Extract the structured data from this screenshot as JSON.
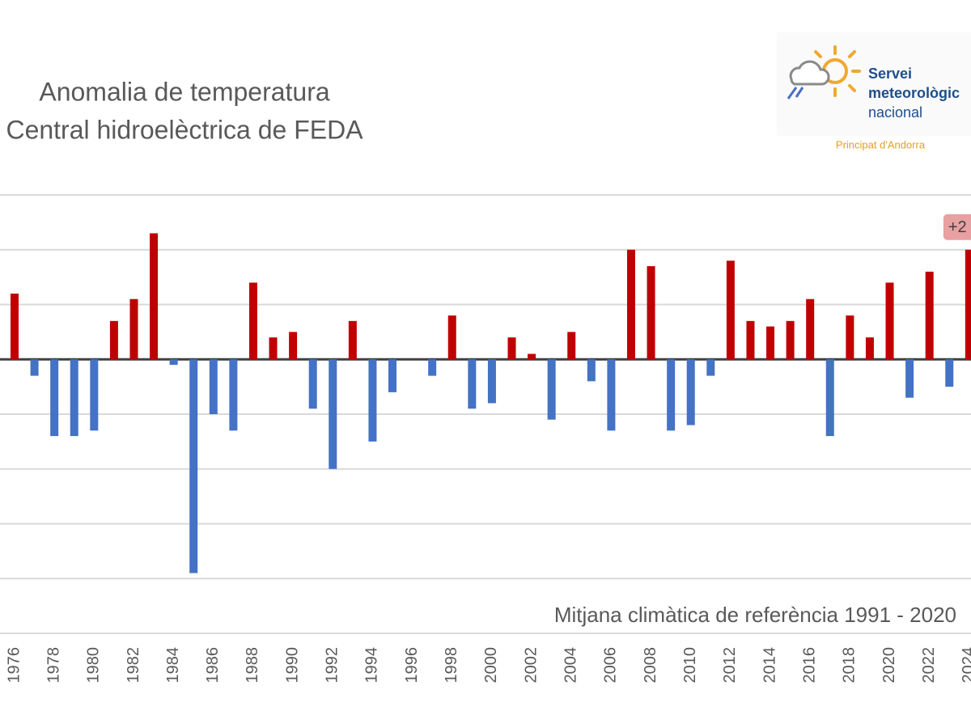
{
  "chart_data": {
    "type": "bar",
    "title_lines": [
      "Anomalia de temperatura",
      "Central hidroelèctrica de FEDA"
    ],
    "annotation": "Mitjana climàtica de referència 1991 - 2020",
    "logo": {
      "lines": [
        "Servei",
        "meteorològic",
        "nacional"
      ],
      "subtitle": "Principat d'Andorra"
    },
    "categories": [
      "1976",
      null,
      "1978",
      null,
      "1980",
      null,
      "1982",
      null,
      "1984",
      null,
      "1986",
      null,
      "1988",
      null,
      "1990",
      null,
      "1992",
      null,
      "1994",
      null,
      "1996",
      null,
      "1998",
      null,
      "2000",
      null,
      "2002",
      null,
      "2004",
      null,
      "2006",
      null,
      "2008",
      null,
      "2010",
      null,
      "2012",
      null,
      "2014",
      null,
      "2016",
      null,
      "2018",
      null,
      "2020",
      null,
      "2022",
      null,
      "2024"
    ],
    "values": [
      1.2,
      -0.3,
      -1.4,
      -1.4,
      -1.3,
      0.7,
      1.1,
      2.3,
      -0.1,
      -3.9,
      -1.0,
      -1.3,
      1.4,
      0.4,
      0.5,
      -0.9,
      -2.0,
      0.7,
      -1.5,
      -0.6,
      0,
      -0.3,
      0.8,
      -0.9,
      -0.8,
      0.4,
      0.1,
      -1.1,
      0.5,
      -0.4,
      -1.3,
      2.0,
      1.7,
      -1.3,
      -1.2,
      -0.3,
      1.8,
      0.7,
      0.6,
      0.7,
      1.1,
      -1.4,
      0.8,
      0.4,
      1.4,
      -0.7,
      1.6,
      -0.5,
      2.0
    ],
    "value_labels": [
      null,
      null,
      null,
      null,
      null,
      null,
      null,
      null,
      null,
      null,
      null,
      null,
      null,
      null,
      null,
      null,
      null,
      null,
      null,
      null,
      null,
      null,
      null,
      null,
      null,
      null,
      null,
      null,
      null,
      null,
      null,
      null,
      null,
      null,
      null,
      null,
      null,
      null,
      null,
      null,
      null,
      null,
      null,
      null,
      null,
      null,
      null,
      null,
      "+2"
    ],
    "positive_color": "#c00000",
    "negative_color": "#4472c4",
    "ylim": [
      -5,
      3
    ],
    "yticks": [
      -5,
      -4,
      -3,
      -2,
      -1,
      0,
      1,
      2,
      3
    ],
    "grid": true
  }
}
